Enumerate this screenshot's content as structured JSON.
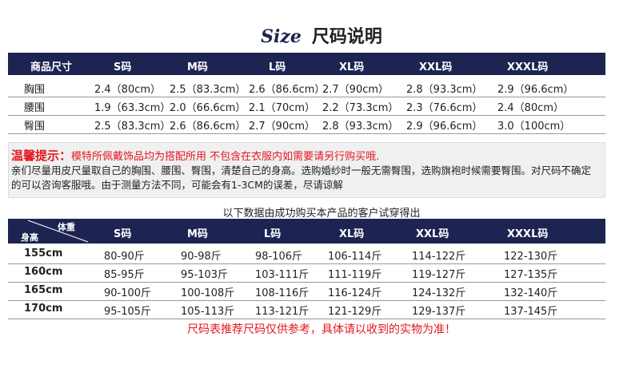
{
  "title": {
    "script": "Size",
    "text": "尺码说明"
  },
  "size_table": {
    "header": [
      "商品尺寸",
      "S码",
      "M码",
      "L码",
      "XL码",
      "XXL码",
      "XXXL码"
    ],
    "rows": [
      [
        "胸围",
        "2.4（80cm）",
        "2.5（83.3cm）",
        "2.6（86.6cm）",
        "2.7（90cm）",
        "2.8（93.3cm）",
        "2.9（96.6cm）"
      ],
      [
        "腰围",
        "1.9（63.3cm）",
        "2.0（66.6cm）",
        "2.1（70cm）",
        "2.2（73.3cm）",
        "2.3（76.6cm）",
        "2.4（80cm）"
      ],
      [
        "臀围",
        "2.5（83.3cm）",
        "2.6（86.6cm）",
        "2.7（90cm）",
        "2.8（93.3cm）",
        "2.9（96.6cm）",
        "3.0（100cm）"
      ]
    ]
  },
  "notice": {
    "label": "温馨提示：",
    "highlight": "模特所佩戴饰品均为搭配所用 不包含在衣服内如需要请另行购买哦.",
    "body": "亲们尽量用皮尺量取自己的胸围、腰围、臀围，清楚自己的身高。选购婚纱时一般无需臀围，选购旗袍时候需要臀围。对尺码不确定的可以咨询客服哦。由于测量方法不同，可能会有1-3CM的误差，尽请谅解"
  },
  "fit_caption": "以下数据由成功购买本产品的客户试穿得出",
  "fit_table": {
    "corner_top": "体重",
    "corner_bottom": "身高",
    "header": [
      "S码",
      "M码",
      "L码",
      "XL码",
      "XXL码",
      "XXXL码"
    ],
    "rows": [
      [
        "155cm",
        "80-90斤",
        "90-98斤",
        "98-106斤",
        "106-114斤",
        "114-122斤",
        "122-130斤"
      ],
      [
        "160cm",
        "85-95斤",
        "95-103斤",
        "103-111斤",
        "111-119斤",
        "119-127斤",
        "127-135斤"
      ],
      [
        "165cm",
        "90-100斤",
        "100-108斤",
        "108-116斤",
        "116-124斤",
        "124-132斤",
        "132-140斤"
      ],
      [
        "170cm",
        "95-105斤",
        "105-113斤",
        "113-121斤",
        "121-129斤",
        "129-137斤",
        "137-145斤"
      ]
    ]
  },
  "footer": "尺码表推荐尺码仅供参考，具体请以收到的实物为准！"
}
